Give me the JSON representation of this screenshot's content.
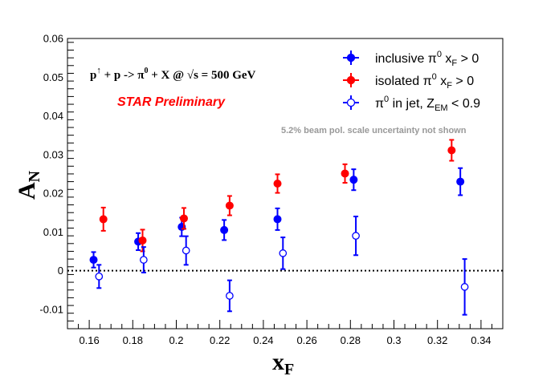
{
  "chart_data": {
    "type": "scatter",
    "xlabel": "x",
    "xlabel_sub": "F",
    "ylabel": "A",
    "ylabel_sub": "N",
    "xlim": [
      0.15,
      0.35
    ],
    "ylim": [
      -0.015,
      0.06
    ],
    "x_ticks": [
      "0.16",
      "0.18",
      "0.2",
      "0.22",
      "0.24",
      "0.26",
      "0.28",
      "0.3",
      "0.32",
      "0.34"
    ],
    "y_ticks": [
      "-0.01",
      "0",
      "0.01",
      "0.02",
      "0.03",
      "0.04",
      "0.05",
      "0.06"
    ],
    "process": {
      "p1": "p",
      "p1_sup": "↑",
      "rest": " + p ->  π",
      "pi_sup": "0",
      "tail": " + X @  ",
      "sqrt": "√s",
      "energy": " = 500 GeV"
    },
    "preliminary": "STAR Preliminary",
    "note": "5.2% beam pol. scale uncertainty not shown",
    "zero_line": "dotted",
    "legend_position": "top-right",
    "series": [
      {
        "id": "inclusive",
        "marker": "filled-circle",
        "color": "#0000ff",
        "legend": {
          "a": "inclusive π",
          "a_sup": "0",
          "b": " x",
          "b_sub": "F",
          "c": " > 0"
        },
        "points": [
          {
            "x": 0.162,
            "y": 0.0028,
            "err": 0.002
          },
          {
            "x": 0.1825,
            "y": 0.0075,
            "err": 0.0022
          },
          {
            "x": 0.2025,
            "y": 0.0113,
            "err": 0.0024
          },
          {
            "x": 0.222,
            "y": 0.0105,
            "err": 0.0026
          },
          {
            "x": 0.2465,
            "y": 0.0133,
            "err": 0.0028
          },
          {
            "x": 0.2815,
            "y": 0.0235,
            "err": 0.0027
          },
          {
            "x": 0.3305,
            "y": 0.023,
            "err": 0.0035
          }
        ]
      },
      {
        "id": "isolated",
        "marker": "filled-circle",
        "color": "#ff0000",
        "legend": {
          "a": "isolated π",
          "a_sup": "0",
          "b": " x",
          "b_sub": "F",
          "c": " > 0"
        },
        "points": [
          {
            "x": 0.1665,
            "y": 0.0133,
            "err": 0.003
          },
          {
            "x": 0.1845,
            "y": 0.0078,
            "err": 0.0028
          },
          {
            "x": 0.2035,
            "y": 0.0135,
            "err": 0.0027
          },
          {
            "x": 0.2245,
            "y": 0.0168,
            "err": 0.0025
          },
          {
            "x": 0.2465,
            "y": 0.0225,
            "err": 0.0024
          },
          {
            "x": 0.2775,
            "y": 0.0251,
            "err": 0.0024
          },
          {
            "x": 0.3265,
            "y": 0.0311,
            "err": 0.0027
          }
        ]
      },
      {
        "id": "in-jet",
        "marker": "open-circle",
        "color": "#0000ff",
        "legend": {
          "a": "π",
          "a_sup": "0",
          "b": " in jet, Z",
          "b_sub": "EM",
          "c": " < 0.9"
        },
        "points": [
          {
            "x": 0.1645,
            "y": -0.0015,
            "err": 0.003
          },
          {
            "x": 0.185,
            "y": 0.0028,
            "err": 0.0033
          },
          {
            "x": 0.2045,
            "y": 0.0052,
            "err": 0.0037
          },
          {
            "x": 0.2245,
            "y": -0.0065,
            "err": 0.004
          },
          {
            "x": 0.249,
            "y": 0.0045,
            "err": 0.0041
          },
          {
            "x": 0.2825,
            "y": 0.009,
            "err": 0.005
          },
          {
            "x": 0.3325,
            "y": -0.0042,
            "err": 0.0072
          }
        ]
      }
    ]
  }
}
